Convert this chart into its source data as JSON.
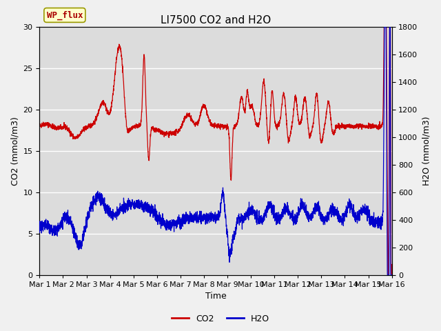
{
  "title": "LI7500 CO2 and H2O",
  "xlabel": "Time",
  "ylabel_left": "CO2 (mmol/m3)",
  "ylabel_right": "H2O (mmol/m3)",
  "xlim": [
    0,
    15
  ],
  "ylim_left": [
    0,
    30
  ],
  "ylim_right": [
    0,
    1800
  ],
  "xtick_labels": [
    "Mar 1",
    "Mar 2",
    "Mar 3",
    "Mar 4",
    "Mar 5",
    "Mar 6",
    "Mar 7",
    "Mar 8",
    "Mar 9",
    "Mar 10",
    "Mar 11",
    "Mar 12",
    "Mar 13",
    "Mar 14",
    "Mar 15",
    "Mar 16"
  ],
  "xtick_positions": [
    0,
    1,
    2,
    3,
    4,
    5,
    6,
    7,
    8,
    9,
    10,
    11,
    12,
    13,
    14,
    15
  ],
  "yticks_left": [
    0,
    5,
    10,
    15,
    20,
    25,
    30
  ],
  "yticks_right": [
    0,
    200,
    400,
    600,
    800,
    1000,
    1200,
    1400,
    1600,
    1800
  ],
  "co2_color": "#cc0000",
  "h2o_color": "#0000cc",
  "background_color": "#dcdcdc",
  "fig_color": "#f0f0f0",
  "annotation_text": "WP_flux",
  "annotation_box_color": "#ffffcc",
  "annotation_border_color": "#999900",
  "legend_co2": "CO2",
  "legend_h2o": "H2O",
  "title_fontsize": 11,
  "axis_fontsize": 9,
  "tick_fontsize": 8,
  "legend_fontsize": 9
}
